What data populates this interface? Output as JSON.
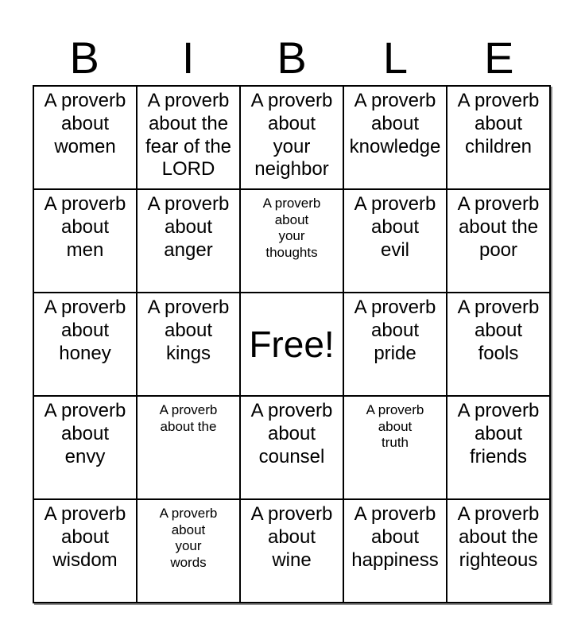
{
  "title": {
    "text": "BIBLE",
    "letters": [
      "B",
      "I",
      "B",
      "L",
      "E"
    ]
  },
  "card": {
    "grid_size": "5x5",
    "free_cell_index": 12,
    "cells": [
      {
        "text": "A proverb\nabout\nwomen",
        "size": "normal"
      },
      {
        "text": "A proverb\nabout the\nfear of the\nLORD",
        "size": "normal"
      },
      {
        "text": "A proverb\nabout\nyour\nneighbor",
        "size": "normal"
      },
      {
        "text": "A proverb\nabout\nknowledge",
        "size": "normal"
      },
      {
        "text": "A proverb\nabout\nchildren",
        "size": "normal"
      },
      {
        "text": "A proverb\nabout\nmen",
        "size": "normal"
      },
      {
        "text": "A proverb\nabout\nanger",
        "size": "normal"
      },
      {
        "text": "A proverb\nabout\nyour\nthoughts",
        "size": "small"
      },
      {
        "text": "A proverb\nabout\nevil",
        "size": "normal"
      },
      {
        "text": "A proverb\nabout the\npoor",
        "size": "normal"
      },
      {
        "text": "A proverb\nabout\nhoney",
        "size": "normal"
      },
      {
        "text": "A proverb\nabout\nkings",
        "size": "normal"
      },
      {
        "text": "Free!",
        "size": "free"
      },
      {
        "text": "A proverb\nabout\npride",
        "size": "normal"
      },
      {
        "text": "A proverb\nabout\nfools",
        "size": "normal"
      },
      {
        "text": "A proverb\nabout\nenvy",
        "size": "normal"
      },
      {
        "text": "A proverb\nabout the",
        "size": "small"
      },
      {
        "text": "A proverb\nabout\ncounsel",
        "size": "normal"
      },
      {
        "text": "A proverb\nabout\ntruth",
        "size": "small"
      },
      {
        "text": "A proverb\nabout\nfriends",
        "size": "normal"
      },
      {
        "text": "A proverb\nabout\nwisdom",
        "size": "normal"
      },
      {
        "text": "A proverb\nabout\nyour\nwords",
        "size": "small"
      },
      {
        "text": "A proverb\nabout\nwine",
        "size": "normal"
      },
      {
        "text": "A proverb\nabout\nhappiness",
        "size": "normal"
      },
      {
        "text": "A proverb\nabout the\nrighteous",
        "size": "normal"
      }
    ]
  },
  "colors": {
    "background": "#ffffff",
    "text": "#000000",
    "grid_border": "#000000",
    "shadow": "#999999"
  }
}
